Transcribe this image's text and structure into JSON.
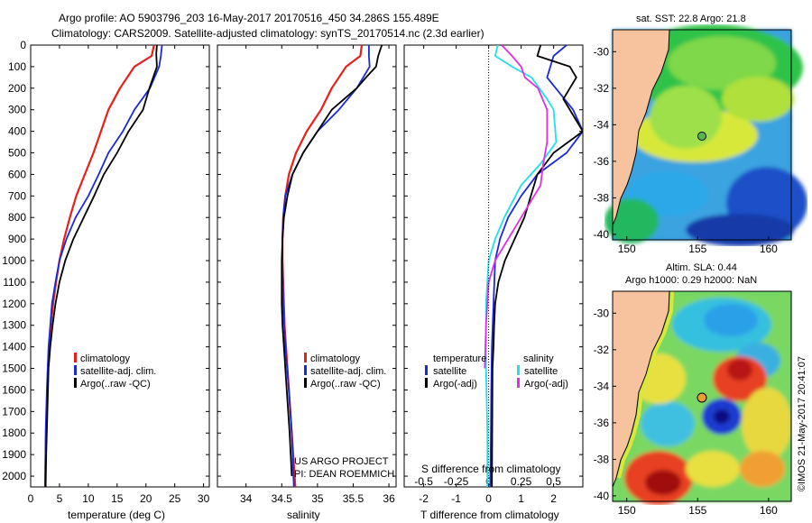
{
  "header": {
    "line1": "Argo profile: AO 5903796_203 16-May-2017 20170516_450 34.286S 155.489E",
    "line2": "Climatology: CARS2009. Satellite-adjusted climatology: synTS_20170514.nc (2.3d earlier)"
  },
  "credits": {
    "project": "US ARGO PROJECT",
    "pi": "PI: DEAN ROEMMICH",
    "copyright": "©IMOS 21-May-2017 20:41:07"
  },
  "colors": {
    "climatology": "#e8201c",
    "satellite": "#1a2ad8",
    "argo": "#000000",
    "sal_satellite": "#22e0e8",
    "sal_argo": "#e030e0",
    "land": "#f6c39e"
  },
  "legend_temp": {
    "climatology": "climatology",
    "satellite": "satellite-adj. clim.",
    "argo": "Argo(..raw -QC)"
  },
  "legend_sal": {
    "climatology": "climatology",
    "satellite": "satellite-adj. clim.",
    "argo": "Argo(..raw -QC)"
  },
  "legend_diff": {
    "temp_head": "temperature",
    "temp_sat": "satellite",
    "temp_argo": "Argo(-adj)",
    "sal_head": "salinity",
    "sal_sat": "satellite",
    "sal_argo": "Argo(-adj)"
  },
  "map_sst": {
    "title": "sat. SST: 22.8  Argo: 21.8",
    "xticks": [
      "150",
      "155",
      "160"
    ],
    "yticks": [
      "-30",
      "-32",
      "-34",
      "-36",
      "-38",
      "-40"
    ]
  },
  "map_sla": {
    "title1": "Altim. SLA: 0.44",
    "title2": "Argo h1000: 0.29 h2000: NaN",
    "xticks": [
      "150",
      "155",
      "160"
    ],
    "yticks": [
      "-30",
      "-32",
      "-34",
      "-36",
      "-38",
      "-40"
    ]
  },
  "chart_data": [
    {
      "type": "line",
      "title": "",
      "xlabel": "temperature (deg C)",
      "ylabel": "",
      "xlim": [
        0,
        31
      ],
      "ylim": [
        2050,
        0
      ],
      "xticks": [
        0,
        5,
        10,
        15,
        20,
        25,
        30
      ],
      "yticks": [
        0,
        100,
        200,
        300,
        400,
        500,
        600,
        700,
        800,
        900,
        1000,
        1100,
        1200,
        1300,
        1400,
        1500,
        1600,
        1700,
        1800,
        1900,
        2000
      ],
      "series": [
        {
          "name": "climatology",
          "x": [
            21.4,
            21.0,
            18.0,
            15.5,
            13.5,
            12.2,
            10.9,
            9.4,
            7.9,
            6.8,
            5.8,
            5.0,
            4.4,
            3.9,
            3.5,
            3.2,
            3.0,
            2.8,
            2.6,
            2.5
          ],
          "depth": [
            0,
            50,
            100,
            200,
            300,
            400,
            500,
            600,
            700,
            800,
            900,
            1000,
            1100,
            1200,
            1300,
            1400,
            1500,
            1700,
            1900,
            2050
          ]
        },
        {
          "name": "satellite-adj. clim.",
          "x": [
            22.8,
            22.6,
            22.3,
            20.7,
            18.0,
            16.0,
            13.5,
            11.8,
            10.0,
            7.8,
            6.2,
            5.0,
            4.3,
            3.7,
            3.4,
            3.1,
            2.8,
            2.6,
            2.5
          ],
          "depth": [
            0,
            50,
            100,
            200,
            300,
            400,
            500,
            600,
            700,
            800,
            900,
            1000,
            1100,
            1200,
            1300,
            1400,
            1600,
            1800,
            2050
          ]
        },
        {
          "name": "Argo(..raw -QC)",
          "x": [
            21.9,
            21.8,
            21.9,
            20.6,
            19.5,
            17.0,
            15.0,
            12.7,
            11.0,
            9.2,
            7.4,
            6.0,
            5.0,
            4.3,
            3.8,
            3.4,
            3.1,
            2.9,
            2.7,
            2.6
          ],
          "depth": [
            0,
            40,
            100,
            200,
            300,
            400,
            500,
            600,
            700,
            800,
            900,
            1000,
            1100,
            1200,
            1300,
            1400,
            1500,
            1700,
            1900,
            2050
          ]
        }
      ],
      "legend": "lower-left"
    },
    {
      "type": "line",
      "title": "",
      "xlabel": "salinity",
      "ylabel": "",
      "xlim": [
        33.6,
        36.1
      ],
      "ylim": [
        2050,
        0
      ],
      "xticks": [
        34,
        34.5,
        35,
        35.5,
        36
      ],
      "series": [
        {
          "name": "climatology",
          "x": [
            35.62,
            35.6,
            35.4,
            35.2,
            35.05,
            34.85,
            34.7,
            34.6,
            34.55,
            34.52,
            34.51,
            34.51,
            34.52,
            34.54,
            34.58,
            34.62,
            34.66,
            34.69
          ],
          "depth": [
            0,
            50,
            100,
            200,
            300,
            400,
            500,
            600,
            700,
            800,
            900,
            1000,
            1100,
            1300,
            1500,
            1700,
            1900,
            2050
          ]
        },
        {
          "name": "satellite-adj. clim.",
          "x": [
            35.72,
            35.72,
            35.73,
            35.55,
            35.3,
            35.0,
            34.8,
            34.65,
            34.55,
            34.52,
            34.51,
            34.51,
            34.52,
            34.55,
            34.6,
            34.64,
            34.67
          ],
          "depth": [
            0,
            50,
            100,
            200,
            300,
            400,
            500,
            600,
            700,
            800,
            900,
            1000,
            1200,
            1400,
            1600,
            1800,
            2050
          ]
        },
        {
          "name": "Argo(..raw -QC)",
          "x": [
            35.9,
            35.85,
            35.82,
            35.68,
            35.55,
            35.2,
            35.0,
            34.8,
            34.65,
            34.58,
            34.53,
            34.51,
            34.5,
            34.5,
            34.51,
            34.53,
            34.57,
            34.61,
            34.64
          ],
          "depth": [
            0,
            50,
            100,
            150,
            200,
            300,
            400,
            500,
            600,
            700,
            800,
            900,
            1000,
            1200,
            1300,
            1400,
            1600,
            1800,
            2000
          ]
        }
      ],
      "legend": "lower-center"
    },
    {
      "type": "line",
      "title": "",
      "xlabel": "T difference from climatology",
      "x2label": "S difference from climatology",
      "xlim": [
        -2.6,
        2.9
      ],
      "x2lim": [
        -0.65,
        0.725
      ],
      "ylim": [
        2050,
        0
      ],
      "xticks": [
        -2,
        -1,
        0,
        1,
        2
      ],
      "x2ticks": [
        -0.5,
        -0.25,
        0,
        0.25,
        0.5
      ],
      "series": [
        {
          "name": "temperature satellite",
          "axis": "T",
          "x": [
            2.4,
            2.0,
            1.9,
            1.8,
            2.6,
            2.9,
            2.4,
            1.5,
            1.0,
            0.6,
            0.35,
            0.2,
            0.15,
            0.1,
            0.08,
            0.07,
            0.05
          ],
          "depth": [
            0,
            50,
            100,
            150,
            300,
            400,
            500,
            600,
            700,
            800,
            900,
            1000,
            1200,
            1400,
            1600,
            1800,
            2050
          ]
        },
        {
          "name": "temperature Argo(-adj)",
          "axis": "T",
          "x": [
            1.6,
            1.5,
            2.5,
            2.7,
            2.3,
            2.9,
            2.0,
            1.5,
            1.3,
            1.1,
            0.8,
            0.5,
            0.3,
            0.2,
            0.17,
            0.15,
            0.12,
            0.1
          ],
          "depth": [
            0,
            50,
            100,
            150,
            250,
            400,
            500,
            600,
            700,
            800,
            900,
            1000,
            1100,
            1200,
            1300,
            1400,
            1500,
            2050
          ]
        },
        {
          "name": "salinity satellite",
          "axis": "S",
          "x": [
            0.07,
            0.05,
            0.18,
            0.33,
            0.45,
            0.5,
            0.52,
            0.4,
            0.25,
            0.12,
            0.05,
            0.0,
            -0.02,
            -0.02,
            -0.01,
            -0.01
          ],
          "depth": [
            0,
            50,
            100,
            150,
            250,
            300,
            450,
            550,
            650,
            800,
            900,
            1000,
            1200,
            1500,
            1800,
            2050
          ]
        },
        {
          "name": "salinity Argo(-adj)",
          "axis": "S",
          "x": [
            0.1,
            0.18,
            0.25,
            0.28,
            0.38,
            0.45,
            0.45,
            0.42,
            0.4,
            0.35,
            0.25,
            0.15,
            0.05,
            0.0,
            -0.02,
            -0.03
          ],
          "depth": [
            0,
            50,
            100,
            150,
            200,
            300,
            450,
            550,
            650,
            700,
            800,
            900,
            1000,
            1100,
            1300,
            1500
          ]
        }
      ],
      "legend": "lower-center"
    }
  ]
}
